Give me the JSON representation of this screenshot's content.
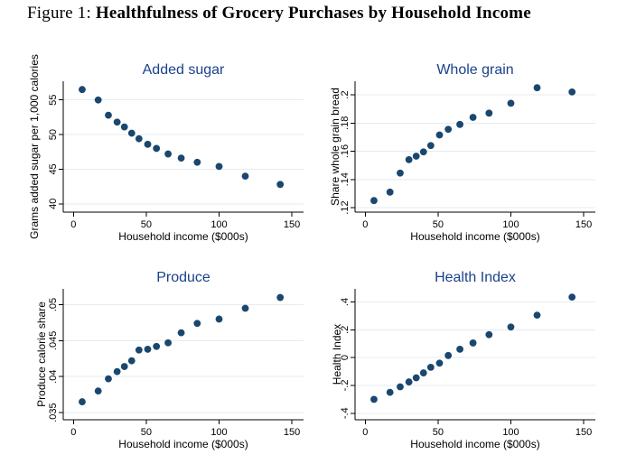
{
  "figure_caption": {
    "label": "Figure 1:",
    "title": "Healthfulness of Grocery Purchases by Household Income"
  },
  "colors": {
    "marker": "#1a476f",
    "panel_title": "#1a418c",
    "gridline": "#e5ebf2",
    "axis": "#000000",
    "tick_text": "#000000",
    "background": "#ffffff"
  },
  "chart_data": [
    {
      "type": "scatter",
      "title": "Added sugar",
      "xlabel": "Household income ($000s)",
      "ylabel": "Grams added sugar per 1,000 calories",
      "x": [
        6,
        17,
        24,
        30,
        35,
        40,
        45,
        51,
        57,
        65,
        74,
        85,
        100,
        118,
        142
      ],
      "y": [
        56.5,
        55.0,
        52.8,
        51.8,
        51.1,
        50.2,
        49.4,
        48.6,
        48.0,
        47.2,
        46.6,
        46.0,
        45.4,
        44.0,
        42.8
      ],
      "xticks": [
        0,
        50,
        100,
        150
      ],
      "xtick_labels": [
        "0",
        "50",
        "100",
        "150"
      ],
      "yticks": [
        40,
        45,
        50,
        55
      ],
      "ytick_labels": [
        "40",
        "45",
        "50",
        "55"
      ],
      "xlim": [
        -7,
        158
      ],
      "ylim": [
        38.8,
        57.7
      ],
      "grid": true,
      "legend": "none"
    },
    {
      "type": "scatter",
      "title": "Whole grain",
      "xlabel": "Household income ($000s)",
      "ylabel": "Share whole grain bread",
      "x": [
        6,
        17,
        24,
        30,
        35,
        40,
        45,
        51,
        57,
        65,
        74,
        85,
        100,
        118,
        142
      ],
      "y": [
        0.125,
        0.131,
        0.1445,
        0.154,
        0.1565,
        0.1595,
        0.164,
        0.1715,
        0.1755,
        0.179,
        0.184,
        0.187,
        0.194,
        0.205,
        0.202
      ],
      "xticks": [
        0,
        50,
        100,
        150
      ],
      "xtick_labels": [
        "0",
        "50",
        "100",
        "150"
      ],
      "yticks": [
        0.12,
        0.14,
        0.16,
        0.18,
        0.2
      ],
      "ytick_labels": [
        ".12",
        ".14",
        ".16",
        ".18",
        ".2"
      ],
      "xlim": [
        -7,
        158
      ],
      "ylim": [
        0.1168,
        0.2096
      ],
      "grid": true,
      "legend": "none"
    },
    {
      "type": "scatter",
      "title": "Produce",
      "xlabel": "Household income ($000s)",
      "ylabel": "Produce calorie share",
      "x": [
        6,
        17,
        24,
        30,
        35,
        40,
        45,
        51,
        57,
        65,
        74,
        85,
        100,
        118,
        142
      ],
      "y": [
        0.0365,
        0.038,
        0.0397,
        0.0407,
        0.0414,
        0.0422,
        0.0437,
        0.0438,
        0.0442,
        0.0447,
        0.0461,
        0.0474,
        0.048,
        0.0495,
        0.051
      ],
      "xticks": [
        0,
        50,
        100,
        150
      ],
      "xtick_labels": [
        "0",
        "50",
        "100",
        "150"
      ],
      "yticks": [
        0.035,
        0.04,
        0.045,
        0.05
      ],
      "ytick_labels": [
        ".035",
        ".04",
        ".045",
        ".05"
      ],
      "xlim": [
        -7,
        158
      ],
      "ylim": [
        0.034,
        0.0522
      ],
      "grid": true,
      "legend": "none"
    },
    {
      "type": "scatter",
      "title": "Health Index",
      "xlabel": "Household income ($000s)",
      "ylabel": "Health Index",
      "x": [
        6,
        17,
        24,
        30,
        35,
        40,
        45,
        51,
        57,
        65,
        74,
        85,
        100,
        118,
        142
      ],
      "y": [
        -0.3,
        -0.25,
        -0.21,
        -0.175,
        -0.145,
        -0.11,
        -0.07,
        -0.04,
        0.015,
        0.06,
        0.105,
        0.165,
        0.22,
        0.305,
        0.435
      ],
      "xticks": [
        0,
        50,
        100,
        150
      ],
      "xtick_labels": [
        "0",
        "50",
        "100",
        "150"
      ],
      "yticks": [
        -0.4,
        -0.2,
        0,
        0.2,
        0.4
      ],
      "ytick_labels": [
        "-.4",
        "-.2",
        "0",
        ".2",
        ".4"
      ],
      "xlim": [
        -7,
        158
      ],
      "ylim": [
        -0.447,
        0.494
      ],
      "grid": true,
      "legend": "none"
    }
  ]
}
